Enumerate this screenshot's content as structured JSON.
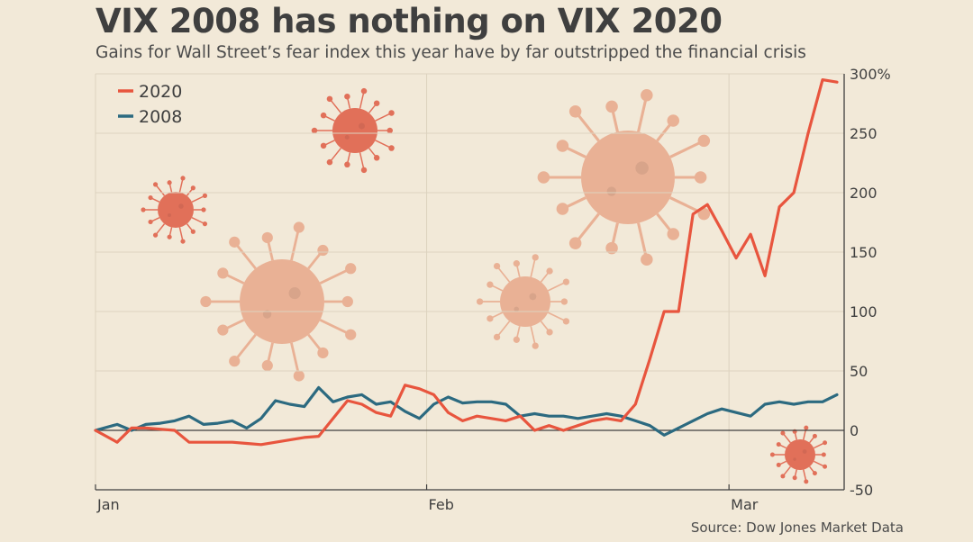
{
  "title": "VIX 2008 has nothing on VIX 2020",
  "subtitle": "Gains for Wall Street’s fear index this year have by far outstripped the financial crisis",
  "source": "Source: Dow Jones Market Data",
  "colors": {
    "background": "#f2e9d8",
    "series_2020": "#e8553e",
    "series_2008": "#2c6a80",
    "grid": "#ddd2bf",
    "virus_light": "#e9ab8e",
    "virus_dark": "#e0634c"
  },
  "chart_data": {
    "type": "line",
    "title": "VIX 2008 has nothing on VIX 2020",
    "xlabel": "",
    "ylabel": "",
    "x_range": [
      0,
      52
    ],
    "ylim": [
      -50,
      300
    ],
    "y_ticks": [
      300,
      250,
      200,
      150,
      100,
      50,
      0,
      -50
    ],
    "y_tick_labels": [
      "300%",
      "250",
      "200",
      "150",
      "100",
      "50",
      "0",
      "-50"
    ],
    "x_ticks": [
      {
        "label": "Jan",
        "x": 0
      },
      {
        "label": "Feb",
        "x": 23
      },
      {
        "label": "Mar",
        "x": 44
      }
    ],
    "legend": [
      "2020",
      "2008"
    ],
    "legend_position": "top-left",
    "series": [
      {
        "name": "2020",
        "color": "#e8553e",
        "x": [
          0,
          1.5,
          2.5,
          3.5,
          4.5,
          5.5,
          6.5,
          7.5,
          8.5,
          9.5,
          10.5,
          11.5,
          12.5,
          13.5,
          14.5,
          15.5,
          16.5,
          17.5,
          18.5,
          19.5,
          20.5,
          21.5,
          22.5,
          23.5,
          24.5,
          25.5,
          26.5,
          27.5,
          28.5,
          29.5,
          30.5,
          31.5,
          32.5,
          33.5,
          34.5,
          35.5,
          36.5,
          37.5,
          38.5,
          39.5,
          40.5,
          41.5,
          42.5,
          43.5,
          44.5,
          45.5,
          46.5,
          47.5,
          48.5,
          49.5,
          50.5,
          51.5
        ],
        "values": [
          0,
          -10,
          2,
          2,
          1,
          0,
          -10,
          -10,
          -10,
          -10,
          -11,
          -12,
          -10,
          -8,
          -6,
          -5,
          10,
          25,
          22,
          15,
          12,
          38,
          35,
          30,
          15,
          8,
          12,
          10,
          8,
          12,
          0,
          4,
          0,
          4,
          8,
          10,
          8,
          22,
          60,
          100,
          100,
          182,
          190,
          168,
          145,
          165,
          130,
          188,
          200,
          250,
          295,
          293
        ]
      },
      {
        "name": "2008",
        "color": "#2c6a80",
        "x": [
          0,
          1.5,
          2.5,
          3.5,
          4.5,
          5.5,
          6.5,
          7.5,
          8.5,
          9.5,
          10.5,
          11.5,
          12.5,
          13.5,
          14.5,
          15.5,
          16.5,
          17.5,
          18.5,
          19.5,
          20.5,
          21.5,
          22.5,
          23.5,
          24.5,
          25.5,
          26.5,
          27.5,
          28.5,
          29.5,
          30.5,
          31.5,
          32.5,
          33.5,
          34.5,
          35.5,
          36.5,
          37.5,
          38.5,
          39.5,
          40.5,
          41.5,
          42.5,
          43.5,
          44.5,
          45.5,
          46.5,
          47.5,
          48.5,
          49.5,
          50.5,
          51.5
        ],
        "values": [
          0,
          5,
          0,
          5,
          6,
          8,
          12,
          5,
          6,
          8,
          2,
          10,
          25,
          22,
          20,
          36,
          24,
          28,
          30,
          22,
          24,
          16,
          10,
          22,
          28,
          23,
          24,
          24,
          22,
          12,
          14,
          12,
          12,
          10,
          12,
          14,
          12,
          8,
          4,
          -4,
          2,
          8,
          14,
          18,
          15,
          12,
          22,
          24,
          22,
          24,
          24,
          30
        ]
      }
    ]
  }
}
